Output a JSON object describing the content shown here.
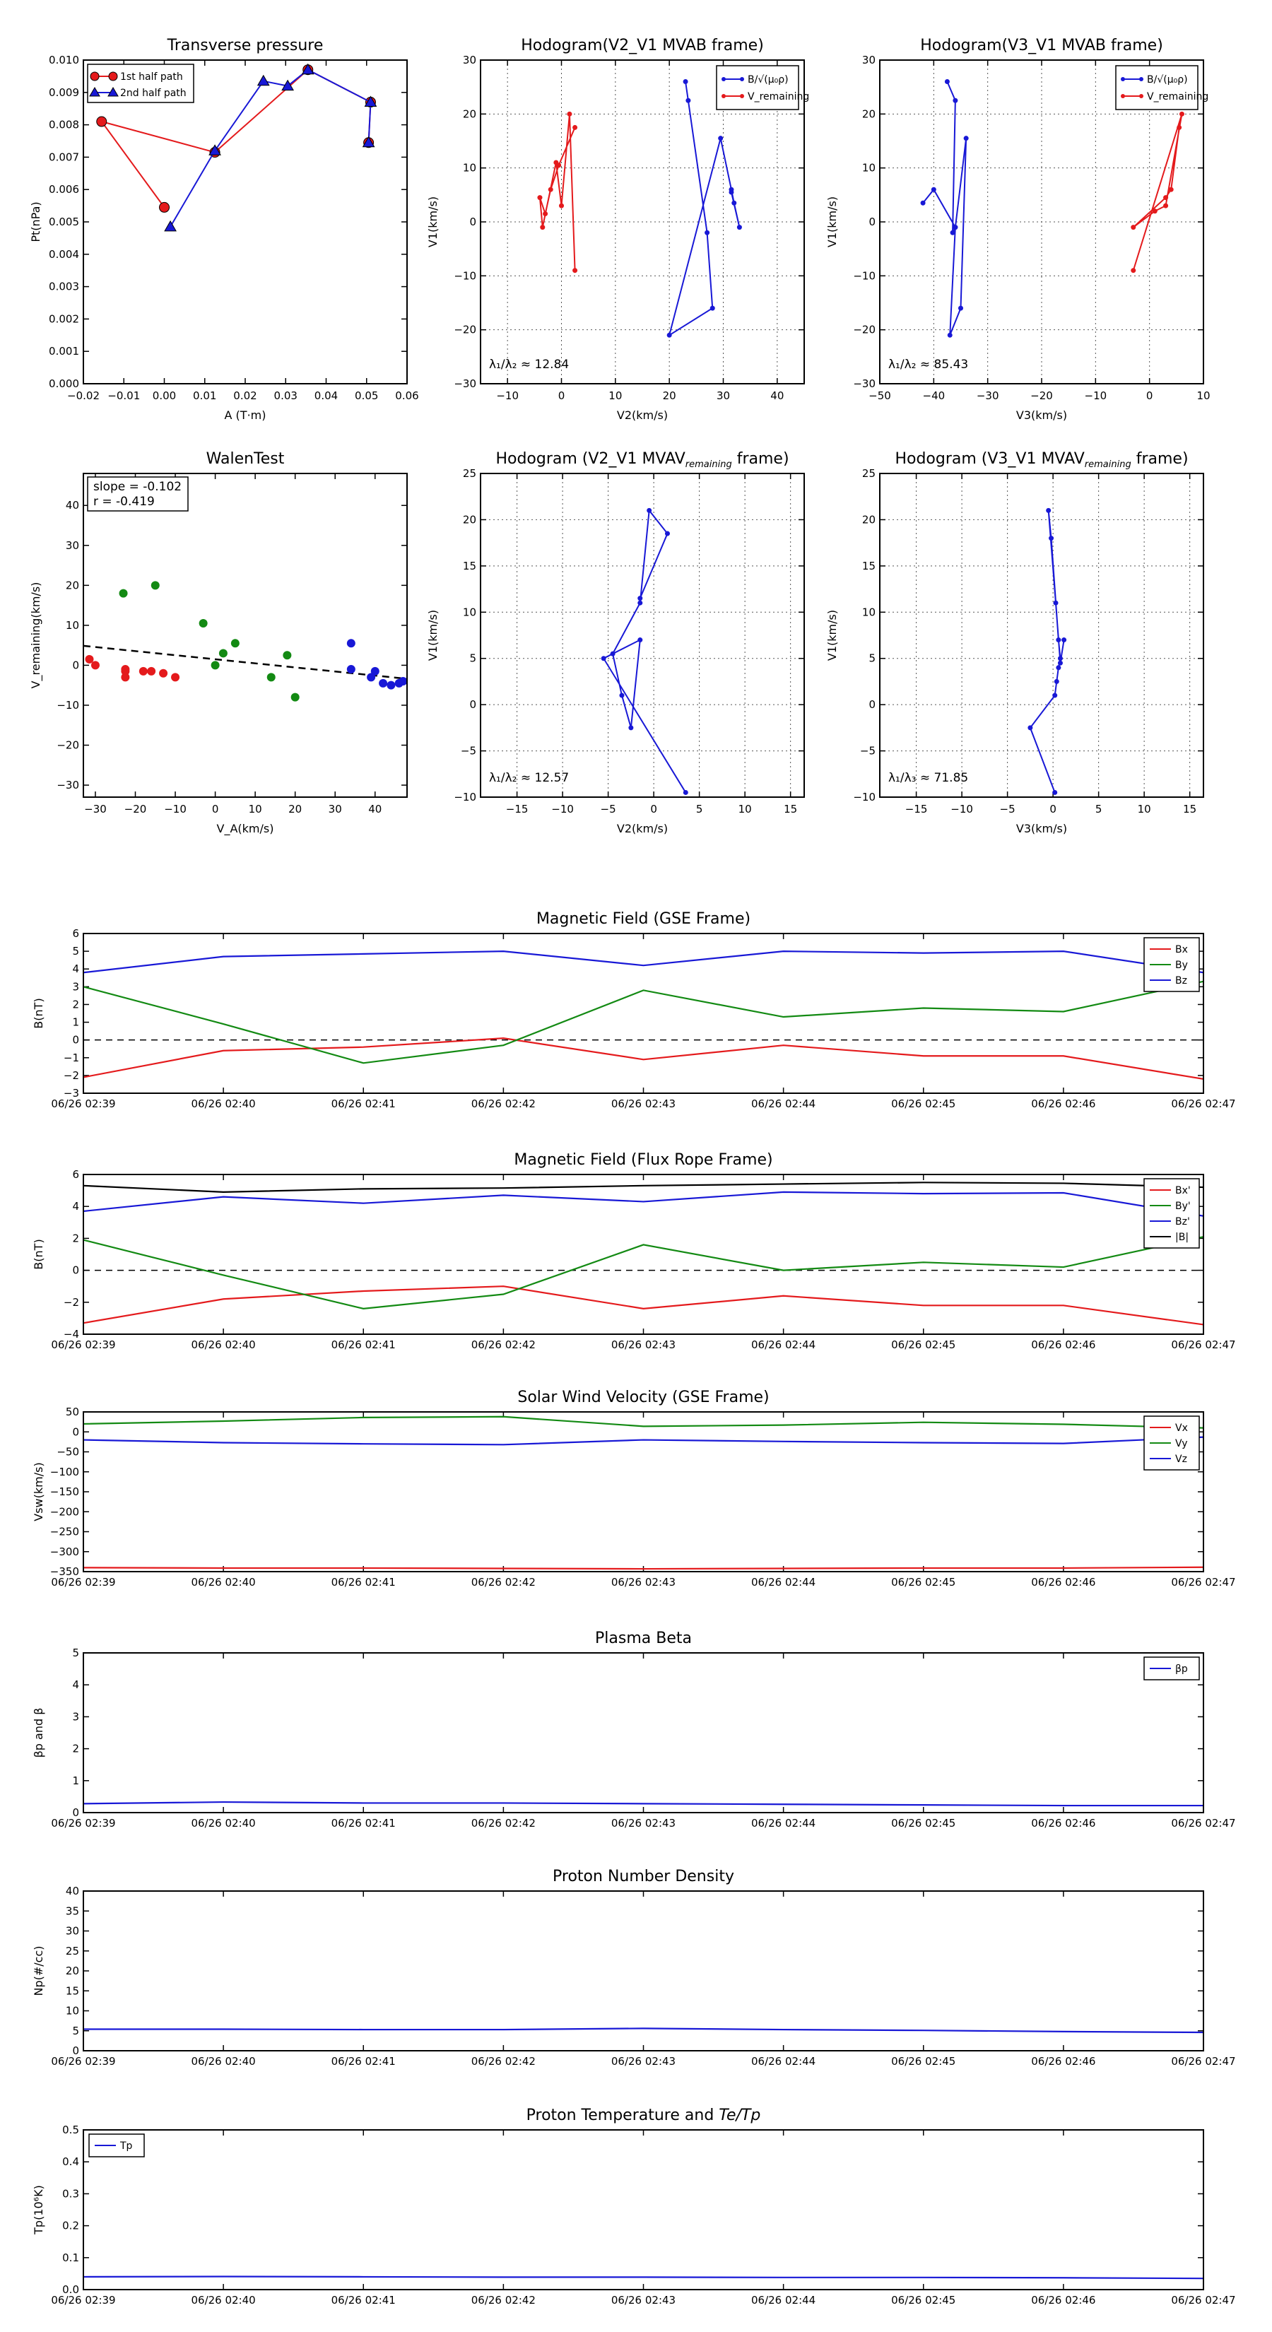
{
  "time_ticks": [
    "06/26 02:39",
    "06/26 02:40",
    "06/26 02:41",
    "06/26 02:42",
    "06/26 02:43",
    "06/26 02:44",
    "06/26 02:45",
    "06/26 02:46",
    "06/26 02:47"
  ],
  "colors": {
    "red": "#e41a1c",
    "green": "#138a13",
    "blue": "#1818d6",
    "black": "#000000",
    "grid": "#555555"
  },
  "chart_data": [
    {
      "id": "transverse_pressure",
      "type": "line",
      "title": "Transverse pressure",
      "xlabel": "A (T·m)",
      "ylabel": "Pt(nPa)",
      "xlim": [
        -0.02,
        0.06
      ],
      "ylim": [
        0,
        0.01
      ],
      "xticks": [
        -0.02,
        -0.01,
        0.0,
        0.01,
        0.02,
        0.03,
        0.04,
        0.05,
        0.06
      ],
      "xtick_labels": [
        "−0.02",
        "−0.01",
        "0.00",
        "0.01",
        "0.02",
        "0.03",
        "0.04",
        "0.05",
        "0.06"
      ],
      "yticks": [
        0,
        0.001,
        0.002,
        0.003,
        0.004,
        0.005,
        0.006,
        0.007,
        0.008,
        0.009,
        0.01
      ],
      "ytick_labels": [
        "0.000",
        "0.001",
        "0.002",
        "0.003",
        "0.004",
        "0.005",
        "0.006",
        "0.007",
        "0.008",
        "0.009",
        "0.010"
      ],
      "legend_pos": "top-left",
      "grid": false,
      "series": [
        {
          "name": "1st half path",
          "color": "red",
          "marker": "circle",
          "x": [
            0.0,
            -0.0155,
            0.0125,
            0.0355,
            0.051,
            0.0505
          ],
          "y": [
            0.00545,
            0.0081,
            0.00715,
            0.0097,
            0.0087,
            0.00745
          ]
        },
        {
          "name": "2nd half path",
          "color": "blue",
          "marker": "triangle",
          "x": [
            0.0015,
            0.0125,
            0.0245,
            0.0305,
            0.0355,
            0.051,
            0.0505
          ],
          "y": [
            0.00485,
            0.0072,
            0.00935,
            0.0092,
            0.0097,
            0.0087,
            0.00745
          ]
        }
      ]
    },
    {
      "id": "hodogram_v2v1_mvab",
      "type": "line",
      "title": "Hodogram(V2_V1 MVAB frame)",
      "xlabel": "V2(km/s)",
      "ylabel": "V1(km/s)",
      "xlim": [
        -15,
        45
      ],
      "ylim": [
        -30,
        30
      ],
      "xticks": [
        -10,
        0,
        10,
        20,
        30,
        40
      ],
      "xtick_labels": [
        "−10",
        "0",
        "10",
        "20",
        "30",
        "40"
      ],
      "yticks": [
        -30,
        -20,
        -10,
        0,
        10,
        20,
        30
      ],
      "ytick_labels": [
        "−30",
        "−20",
        "−10",
        "0",
        "10",
        "20",
        "30"
      ],
      "grid": true,
      "legend_pos": "top-right",
      "annotation": "λ₁/λ₂ ≈ 12.84",
      "series": [
        {
          "name": "B/√(μ₀ρ)",
          "color": "blue",
          "x": [
            23,
            23.5,
            27,
            28,
            20,
            29.5,
            31.5,
            32,
            33,
            31.5
          ],
          "y": [
            26,
            22.5,
            -2,
            -16,
            -21,
            15.5,
            6,
            3.5,
            -1,
            5.5
          ]
        },
        {
          "name": "V_remaining",
          "color": "red",
          "x": [
            2.5,
            1.5,
            0,
            -1,
            -3.5,
            -4,
            -3,
            -2,
            -0.5,
            2.5
          ],
          "y": [
            -9,
            20,
            3,
            11,
            -1,
            4.5,
            1.5,
            6,
            10.5,
            17.5
          ]
        }
      ]
    },
    {
      "id": "hodogram_v3v1_mvab",
      "type": "line",
      "title": "Hodogram(V3_V1 MVAB frame)",
      "xlabel": "V3(km/s)",
      "ylabel": "V1(km/s)",
      "xlim": [
        -50,
        10
      ],
      "ylim": [
        -30,
        30
      ],
      "xticks": [
        -50,
        -40,
        -30,
        -20,
        -10,
        0,
        10
      ],
      "xtick_labels": [
        "−50",
        "−40",
        "−30",
        "−20",
        "−10",
        "0",
        "10"
      ],
      "yticks": [
        -30,
        -20,
        -10,
        0,
        10,
        20,
        30
      ],
      "ytick_labels": [
        "−30",
        "−20",
        "−10",
        "0",
        "10",
        "20",
        "30"
      ],
      "grid": true,
      "legend_pos": "top-right",
      "annotation": "λ₁/λ₂ ≈ 85.43",
      "series": [
        {
          "name": "B/√(μ₀ρ)",
          "color": "blue",
          "x": [
            -37.5,
            -36,
            -36.5,
            -36,
            -37,
            -35,
            -34,
            -36,
            -40,
            -42
          ],
          "y": [
            26,
            22.5,
            -2,
            -1,
            -21,
            -16,
            15.5,
            -1,
            6,
            3.5
          ]
        },
        {
          "name": "V_remaining",
          "color": "red",
          "x": [
            -3,
            6,
            3,
            1,
            -3,
            3,
            4,
            5.5
          ],
          "y": [
            -9,
            20,
            3,
            2,
            -1,
            4.5,
            6,
            17.5
          ]
        }
      ]
    },
    {
      "id": "walen_test",
      "type": "scatter",
      "title": "WalenTest",
      "xlabel": "V_A(km/s)",
      "ylabel": "V_remaining(km/s)",
      "xlim": [
        -33,
        48
      ],
      "ylim": [
        -33,
        48
      ],
      "xticks": [
        -30,
        -20,
        -10,
        0,
        10,
        20,
        30,
        40
      ],
      "xtick_labels": [
        "−30",
        "−20",
        "−10",
        "0",
        "10",
        "20",
        "30",
        "40"
      ],
      "yticks": [
        -30,
        -20,
        -10,
        0,
        10,
        20,
        30,
        40
      ],
      "ytick_labels": [
        "−30",
        "−20",
        "−10",
        "0",
        "10",
        "20",
        "30",
        "40"
      ],
      "grid": false,
      "annotation_lines": [
        "slope = -0.102",
        "r = -0.419"
      ],
      "fit": {
        "slope": -0.102,
        "intercept": 1.5
      },
      "series": [
        {
          "name": "red",
          "color": "red",
          "x": [
            -31.5,
            -30,
            -22.5,
            -22.5,
            -22.5,
            -18,
            -16,
            -13,
            -10
          ],
          "y": [
            1.5,
            0,
            -3,
            -1.5,
            -1,
            -1.5,
            -1.5,
            -2,
            -3
          ]
        },
        {
          "name": "green",
          "color": "green",
          "x": [
            -23,
            -15,
            -3,
            0,
            2,
            5,
            14,
            18,
            20
          ],
          "y": [
            18,
            20,
            10.5,
            0,
            3,
            5.5,
            -3,
            2.5,
            -8
          ]
        },
        {
          "name": "blue",
          "color": "blue",
          "x": [
            34,
            34,
            39,
            40,
            42,
            44,
            46,
            47
          ],
          "y": [
            5.5,
            -1,
            -3,
            -1.5,
            -4.5,
            -5,
            -4.5,
            -4
          ]
        }
      ]
    },
    {
      "id": "hodogram_v2v1_mvav",
      "type": "line",
      "title": "Hodogram (V2_V1 MVAV",
      "title_sub": "remaining",
      "title_end": " frame)",
      "xlabel": "V2(km/s)",
      "ylabel": "V1(km/s)",
      "xlim": [
        -19,
        16.5
      ],
      "ylim": [
        -10,
        25
      ],
      "xticks": [
        -15,
        -10,
        -5,
        0,
        5,
        10,
        15
      ],
      "xtick_labels": [
        "−15",
        "−10",
        "−5",
        "0",
        "5",
        "10",
        "15"
      ],
      "yticks": [
        -10,
        -5,
        0,
        5,
        10,
        15,
        20,
        25
      ],
      "ytick_labels": [
        "−10",
        "−5",
        "0",
        "5",
        "10",
        "15",
        "20",
        "25"
      ],
      "grid": true,
      "annotation": "λ₁/λ₂ ≈ 12.57",
      "series": [
        {
          "name": "V_remaining",
          "color": "blue",
          "x": [
            3.5,
            -5.5,
            -1.5,
            -2.5,
            -3.5,
            -4.5,
            -1.5,
            -0.5,
            1.5,
            -1.5
          ],
          "y": [
            -9.5,
            5,
            7,
            -2.5,
            1,
            5.5,
            11,
            21,
            18.5,
            11.5
          ]
        }
      ]
    },
    {
      "id": "hodogram_v3v1_mvav",
      "type": "line",
      "title": "Hodogram (V3_V1 MVAV",
      "title_sub": "remaining",
      "title_end": " frame)",
      "xlabel": "V3(km/s)",
      "ylabel": "V1(km/s)",
      "xlim": [
        -19,
        16.5
      ],
      "ylim": [
        -10,
        25
      ],
      "xticks": [
        -15,
        -10,
        -5,
        0,
        5,
        10,
        15
      ],
      "xtick_labels": [
        "−15",
        "−10",
        "−5",
        "0",
        "5",
        "10",
        "15"
      ],
      "yticks": [
        -10,
        -5,
        0,
        5,
        10,
        15,
        20,
        25
      ],
      "ytick_labels": [
        "−10",
        "−5",
        "0",
        "5",
        "10",
        "15",
        "20",
        "25"
      ],
      "grid": true,
      "annotation": "λ₁/λ₃ ≈ 71.85",
      "series": [
        {
          "name": "V_remaining",
          "color": "blue",
          "x": [
            0.2,
            -2.5,
            0.2,
            0.4,
            0.6,
            0.8,
            0.6,
            -0.2,
            -0.5,
            0.3,
            0.8,
            1.2
          ],
          "y": [
            -9.5,
            -2.5,
            1,
            2.5,
            4,
            5,
            7,
            18,
            21,
            11,
            4.5,
            7
          ]
        }
      ]
    },
    {
      "id": "mag_field_gse",
      "type": "line",
      "title": "Magnetic Field (GSE Frame)",
      "ylabel": "B(nT)",
      "ylim": [
        -3,
        6
      ],
      "yticks": [
        -3,
        -2,
        -1,
        0,
        1,
        2,
        3,
        4,
        5,
        6
      ],
      "ytick_labels": [
        "−3",
        "−2",
        "−1",
        "0",
        "1",
        "2",
        "3",
        "4",
        "5",
        "6"
      ],
      "zero_line": true,
      "legend_pos": "top-right",
      "x": [
        0,
        1,
        2,
        3,
        4,
        5,
        6,
        7,
        8
      ],
      "series": [
        {
          "name": "Bx",
          "color": "red",
          "values": [
            -2.1,
            -0.6,
            -0.4,
            0.1,
            -1.1,
            -0.3,
            -0.9,
            -0.9,
            -2.2
          ]
        },
        {
          "name": "By",
          "color": "green",
          "values": [
            3.0,
            0.9,
            -1.3,
            -0.3,
            2.8,
            1.3,
            1.8,
            1.6,
            3.3
          ]
        },
        {
          "name": "Bz",
          "color": "blue",
          "values": [
            3.8,
            4.7,
            4.85,
            5.0,
            4.2,
            5.0,
            4.9,
            5.0,
            3.8
          ]
        }
      ]
    },
    {
      "id": "mag_field_fr",
      "type": "line",
      "title": "Magnetic Field (Flux Rope Frame)",
      "ylabel": "B(nT)",
      "ylim": [
        -4,
        6
      ],
      "yticks": [
        -4,
        -2,
        0,
        2,
        4,
        6
      ],
      "ytick_labels": [
        "−4",
        "−2",
        "0",
        "2",
        "4",
        "6"
      ],
      "zero_line": true,
      "legend_pos": "top-right",
      "x": [
        0,
        1,
        2,
        3,
        4,
        5,
        6,
        7,
        8
      ],
      "series": [
        {
          "name": "Bx'",
          "color": "red",
          "values": [
            -3.3,
            -1.8,
            -1.3,
            -1.0,
            -2.4,
            -1.6,
            -2.2,
            -2.2,
            -3.4
          ]
        },
        {
          "name": "By'",
          "color": "green",
          "values": [
            1.9,
            -0.3,
            -2.4,
            -1.5,
            1.6,
            0.0,
            0.5,
            0.2,
            2.1
          ]
        },
        {
          "name": "Bz'",
          "color": "blue",
          "values": [
            3.7,
            4.6,
            4.2,
            4.7,
            4.3,
            4.9,
            4.8,
            4.85,
            3.4
          ]
        },
        {
          "name": "|B|",
          "color": "black",
          "values": [
            5.3,
            4.9,
            5.1,
            5.15,
            5.3,
            5.4,
            5.5,
            5.45,
            5.2
          ]
        }
      ]
    },
    {
      "id": "sw_velocity",
      "type": "line",
      "title": "Solar Wind Velocity (GSE Frame)",
      "ylabel": "Vsw(km/s)",
      "ylim": [
        -350,
        50
      ],
      "yticks": [
        -350,
        -300,
        -250,
        -200,
        -150,
        -100,
        -50,
        0,
        50
      ],
      "ytick_labels": [
        "−350",
        "−300",
        "−250",
        "−200",
        "−150",
        "−100",
        "−50",
        "0",
        "50"
      ],
      "legend_pos": "top-right",
      "x": [
        0,
        1,
        2,
        3,
        4,
        5,
        6,
        7,
        8
      ],
      "series": [
        {
          "name": "Vx",
          "color": "red",
          "values": [
            -340,
            -341,
            -341,
            -342,
            -343,
            -342,
            -341,
            -341,
            -339
          ]
        },
        {
          "name": "Vy",
          "color": "green",
          "values": [
            20,
            27,
            36,
            38,
            14,
            17,
            24,
            19,
            10
          ]
        },
        {
          "name": "Vz",
          "color": "blue",
          "values": [
            -20,
            -27,
            -30,
            -32,
            -20,
            -24,
            -27,
            -29,
            -13
          ]
        }
      ]
    },
    {
      "id": "plasma_beta",
      "type": "line",
      "title": "Plasma Beta",
      "ylabel": "βp and β",
      "ylim": [
        0,
        5
      ],
      "yticks": [
        0,
        1,
        2,
        3,
        4,
        5
      ],
      "ytick_labels": [
        "0",
        "1",
        "2",
        "3",
        "4",
        "5"
      ],
      "legend_pos": "top-right",
      "x": [
        0,
        1,
        2,
        3,
        4,
        5,
        6,
        7,
        8
      ],
      "series": [
        {
          "name": "βp",
          "color": "blue",
          "values": [
            0.28,
            0.33,
            0.3,
            0.3,
            0.28,
            0.26,
            0.24,
            0.22,
            0.22
          ]
        }
      ]
    },
    {
      "id": "proton_density",
      "type": "line",
      "title": "Proton Number Density",
      "ylabel": "Np(#/cc)",
      "ylim": [
        0,
        40
      ],
      "yticks": [
        0,
        5,
        10,
        15,
        20,
        25,
        30,
        35,
        40
      ],
      "ytick_labels": [
        "0",
        "5",
        "10",
        "15",
        "20",
        "25",
        "30",
        "35",
        "40"
      ],
      "x": [
        0,
        1,
        2,
        3,
        4,
        5,
        6,
        7,
        8
      ],
      "series": [
        {
          "name": "Np",
          "color": "blue",
          "values": [
            5.4,
            5.4,
            5.3,
            5.3,
            5.6,
            5.3,
            5.1,
            4.8,
            4.6
          ]
        }
      ]
    },
    {
      "id": "proton_temp",
      "type": "line",
      "title": "Proton Temperature and",
      "title_math": "Te/Tp",
      "ylabel": "Tp(10⁶K)",
      "ylim": [
        0,
        0.5
      ],
      "yticks": [
        0,
        0.1,
        0.2,
        0.3,
        0.4,
        0.5
      ],
      "ytick_labels": [
        "0.0",
        "0.1",
        "0.2",
        "0.3",
        "0.4",
        "0.5"
      ],
      "legend_pos": "top-left",
      "x": [
        0,
        1,
        2,
        3,
        4,
        5,
        6,
        7,
        8
      ],
      "series": [
        {
          "name": "Tp",
          "color": "blue",
          "values": [
            0.04,
            0.041,
            0.04,
            0.039,
            0.039,
            0.038,
            0.038,
            0.037,
            0.035
          ]
        }
      ]
    }
  ]
}
